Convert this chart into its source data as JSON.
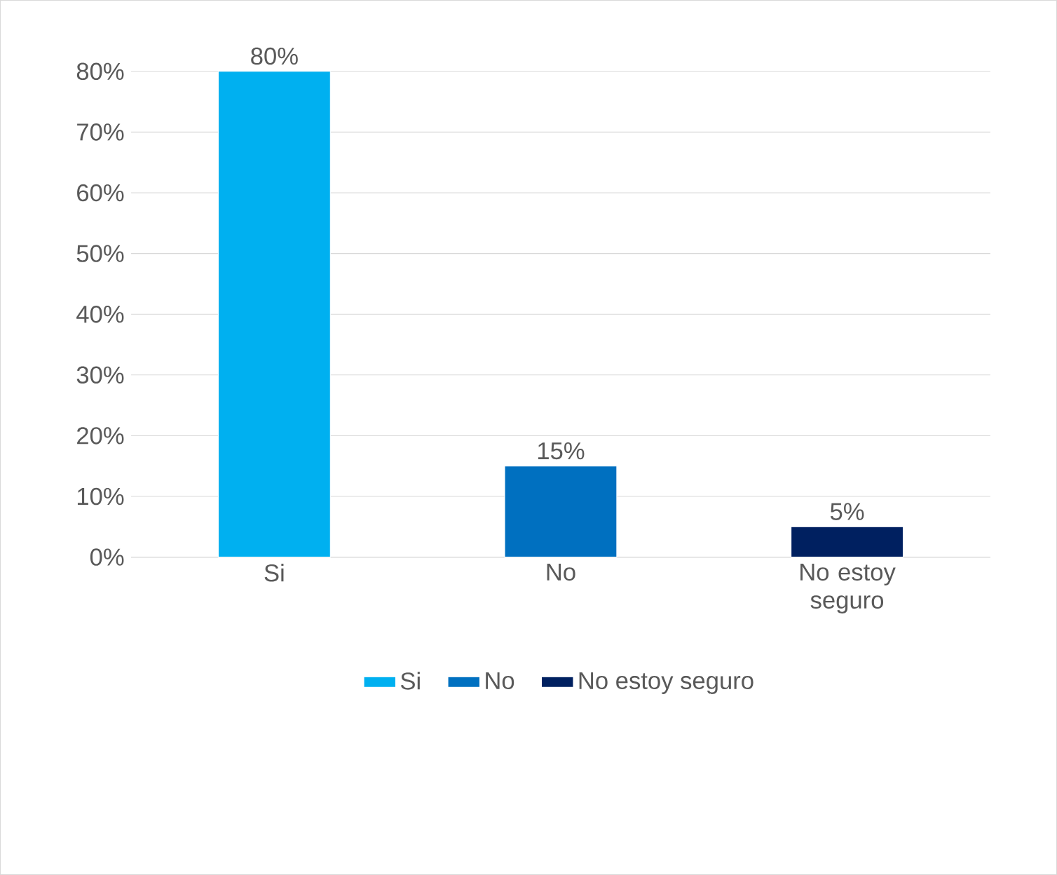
{
  "chart_data": {
    "type": "bar",
    "categories": [
      "Si",
      "No",
      "No estoy seguro"
    ],
    "series": [
      {
        "name": "Si",
        "color": "#00b0f0",
        "values": [
          80,
          null,
          null
        ]
      },
      {
        "name": "No",
        "color": "#0070c0",
        "values": [
          null,
          15,
          null
        ]
      },
      {
        "name": "No estoy seguro",
        "color": "#002060",
        "values": [
          null,
          null,
          5
        ]
      }
    ],
    "value_labels": [
      "80%",
      "15%",
      "5%"
    ],
    "ylim": [
      0,
      80
    ],
    "yticks": [
      {
        "value": 0,
        "label": "0%"
      },
      {
        "value": 10,
        "label": "10%"
      },
      {
        "value": 20,
        "label": "20%"
      },
      {
        "value": 30,
        "label": "30%"
      },
      {
        "value": 40,
        "label": "40%"
      },
      {
        "value": 50,
        "label": "50%"
      },
      {
        "value": 60,
        "label": "60%"
      },
      {
        "value": 70,
        "label": "70%"
      },
      {
        "value": 80,
        "label": "80%"
      }
    ],
    "grid": "y",
    "legend": "bottom"
  }
}
